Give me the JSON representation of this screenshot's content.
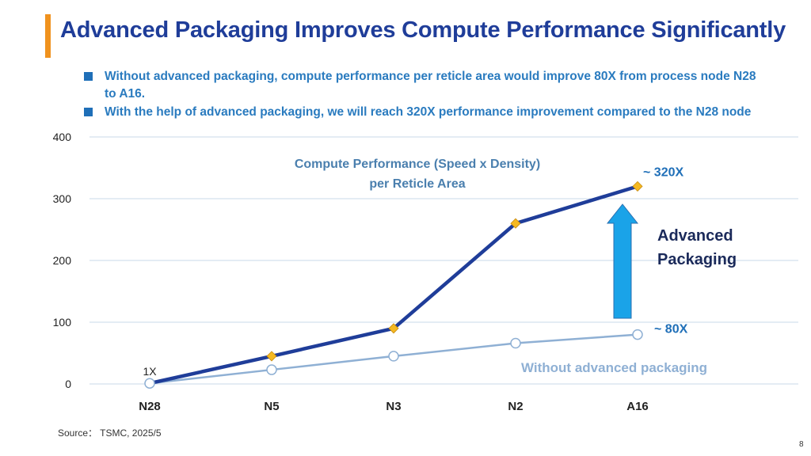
{
  "slide": {
    "title": "Advanced Packaging Improves Compute Performance Significantly",
    "bullets": [
      "Without advanced packaging, compute performance per reticle area would improve 80X from process node N28 to A16.",
      "With the help of advanced packaging, we will reach 320X performance improvement compared to the N28 node"
    ],
    "source": "Source： TSMC, 2025/5",
    "page_number": "8"
  },
  "colors": {
    "title": "#1f3d99",
    "bullet_text": "#2a7bbf",
    "accent_bar": "#f0921e",
    "series_advanced": "#1f3d99",
    "series_without": "#8fb0d4",
    "marker_advanced": "#f5b922",
    "arrow_fill": "#1aa3e8",
    "gridline": "#c8d8ea"
  },
  "chart_data": {
    "type": "line",
    "title_lines": [
      "Compute Performance (Speed x Density)",
      "per Reticle Area"
    ],
    "categories": [
      "N28",
      "N5",
      "N3",
      "N2",
      "A16"
    ],
    "ylim": [
      0,
      400
    ],
    "yticks": [
      0,
      100,
      200,
      300,
      400
    ],
    "grid": true,
    "series": [
      {
        "name": "Advanced Packaging",
        "values": [
          1,
          45,
          90,
          260,
          320
        ],
        "marker": "diamond"
      },
      {
        "name": "Without advanced packaging",
        "values": [
          1,
          23,
          45,
          66,
          80
        ],
        "marker": "circle"
      }
    ],
    "annotations": {
      "start_label": "1X",
      "end_label_advanced": "~ 320X",
      "end_label_without": "~ 80X",
      "arrow_label_lines": [
        "Advanced",
        "Packaging"
      ]
    }
  }
}
